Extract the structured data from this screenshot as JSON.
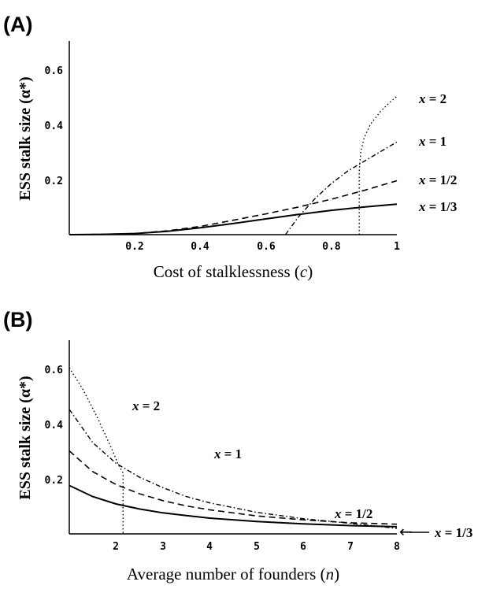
{
  "chart_data": [
    {
      "panel": "(A)",
      "type": "line",
      "xlabel": "Cost of stalklessness (c)",
      "ylabel": "ESS stalk size (α*)",
      "xlim": [
        0,
        1
      ],
      "ylim": [
        0,
        0.7
      ],
      "xticks": [
        "0.2",
        "0.4",
        "0.6",
        "0.8",
        "1"
      ],
      "yticks": [
        "0.2",
        "0.4",
        "0.6"
      ],
      "xtick_values": [
        0.2,
        0.4,
        0.6,
        0.8,
        1.0
      ],
      "ytick_values": [
        0.2,
        0.4,
        0.6
      ],
      "series": [
        {
          "label": "x = 1/3",
          "style": "solid",
          "x": [
            0,
            0.1,
            0.2,
            0.3,
            0.4,
            0.5,
            0.6,
            0.7,
            0.8,
            0.9,
            1.0
          ],
          "y": [
            0,
            0.001,
            0.004,
            0.012,
            0.025,
            0.04,
            0.057,
            0.073,
            0.088,
            0.1,
            0.11
          ]
        },
        {
          "label": "x = 1/2",
          "style": "dashed",
          "x": [
            0,
            0.1,
            0.2,
            0.3,
            0.4,
            0.5,
            0.6,
            0.7,
            0.8,
            0.9,
            1.0
          ],
          "y": [
            0,
            0.001,
            0.004,
            0.014,
            0.03,
            0.052,
            0.075,
            0.1,
            0.128,
            0.16,
            0.195
          ]
        },
        {
          "label": "x = 1",
          "style": "dashdot",
          "x": [
            0.66,
            0.7,
            0.75,
            0.8,
            0.85,
            0.9,
            0.95,
            1.0
          ],
          "y": [
            0,
            0.065,
            0.13,
            0.185,
            0.23,
            0.265,
            0.3,
            0.335
          ]
        },
        {
          "label": "x = 2",
          "style": "dotted",
          "x": [
            0.885,
            0.885,
            0.89,
            0.9,
            0.92,
            0.95,
            0.98,
            1.0
          ],
          "y": [
            0,
            0.23,
            0.3,
            0.35,
            0.4,
            0.445,
            0.48,
            0.5
          ]
        }
      ]
    },
    {
      "panel": "(B)",
      "type": "line",
      "xlabel": "Average number of founders (n)",
      "ylabel": "ESS stalk size (α*)",
      "xlim": [
        1,
        8
      ],
      "ylim": [
        0,
        0.7
      ],
      "xticks": [
        "2",
        "3",
        "4",
        "5",
        "6",
        "7",
        "8"
      ],
      "yticks": [
        "0.2",
        "0.4",
        "0.6"
      ],
      "xtick_values": [
        2,
        3,
        4,
        5,
        6,
        7,
        8
      ],
      "ytick_values": [
        0.2,
        0.4,
        0.6
      ],
      "series": [
        {
          "label": "x = 1/3",
          "style": "solid",
          "x": [
            1,
            1.5,
            2,
            2.5,
            3,
            3.5,
            4,
            5,
            6,
            7,
            8
          ],
          "y": [
            0.175,
            0.135,
            0.108,
            0.09,
            0.076,
            0.066,
            0.057,
            0.045,
            0.036,
            0.03,
            0.026
          ]
        },
        {
          "label": "x = 1/2",
          "style": "dashed",
          "x": [
            1,
            1.5,
            2,
            2.5,
            3,
            3.5,
            4,
            5,
            6,
            7,
            8
          ],
          "y": [
            0.3,
            0.225,
            0.178,
            0.145,
            0.12,
            0.101,
            0.087,
            0.065,
            0.051,
            0.04,
            0.035
          ]
        },
        {
          "label": "x = 1",
          "style": "dashdot",
          "x": [
            1,
            1.5,
            2,
            2.5,
            3,
            3.5,
            4,
            5,
            6,
            7,
            8
          ],
          "y": [
            0.45,
            0.33,
            0.255,
            0.205,
            0.167,
            0.135,
            0.112,
            0.078,
            0.055,
            0.038,
            0.02
          ]
        },
        {
          "label": "x = 2",
          "style": "dotted",
          "x": [
            1,
            1.3,
            1.6,
            1.9,
            2.05,
            2.15,
            2.15
          ],
          "y": [
            0.6,
            0.52,
            0.42,
            0.31,
            0.25,
            0.22,
            0
          ]
        }
      ],
      "annotation": "←"
    }
  ]
}
